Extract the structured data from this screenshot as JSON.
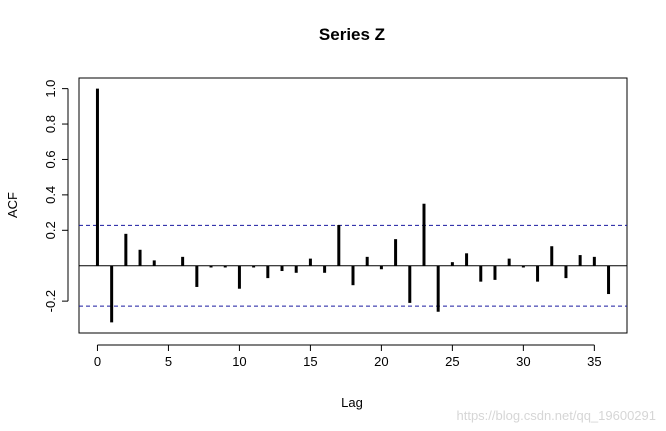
{
  "chart_data": {
    "type": "bar",
    "title": "Series  Z",
    "xlabel": "Lag",
    "ylabel": "ACF",
    "x": [
      0,
      1,
      2,
      3,
      4,
      5,
      6,
      7,
      8,
      9,
      10,
      11,
      12,
      13,
      14,
      15,
      16,
      17,
      18,
      19,
      20,
      21,
      22,
      23,
      24,
      25,
      26,
      27,
      28,
      29,
      30,
      31,
      32,
      33,
      34,
      35,
      36
    ],
    "values": [
      1.0,
      -0.32,
      0.18,
      0.09,
      0.03,
      0.0,
      0.05,
      -0.12,
      -0.01,
      -0.01,
      -0.13,
      -0.01,
      -0.07,
      -0.03,
      -0.04,
      0.04,
      -0.04,
      0.23,
      -0.11,
      0.05,
      -0.02,
      0.15,
      -0.21,
      0.35,
      -0.26,
      0.02,
      0.07,
      -0.09,
      -0.08,
      0.04,
      -0.01,
      -0.09,
      0.11,
      -0.07,
      0.06,
      0.05,
      -0.16
    ],
    "confidence_bound": 0.228,
    "xlim": [
      -1.3,
      37.3
    ],
    "ylim": [
      -0.38,
      1.06
    ],
    "x_ticks": [
      0,
      5,
      10,
      15,
      20,
      25,
      30,
      35
    ],
    "x_tick_labels": [
      "0",
      "5",
      "10",
      "15",
      "20",
      "25",
      "30",
      "35"
    ],
    "y_ticks": [
      -0.2,
      0.2,
      0.4,
      0.6,
      0.8,
      1.0
    ],
    "y_tick_labels": [
      "-0.2",
      "0.2",
      "0.4",
      "0.6",
      "0.8",
      "1.0"
    ],
    "grid": false,
    "bound_color": "#1a1aa0"
  },
  "watermark": "https://blog.csdn.net/qq_19600291"
}
